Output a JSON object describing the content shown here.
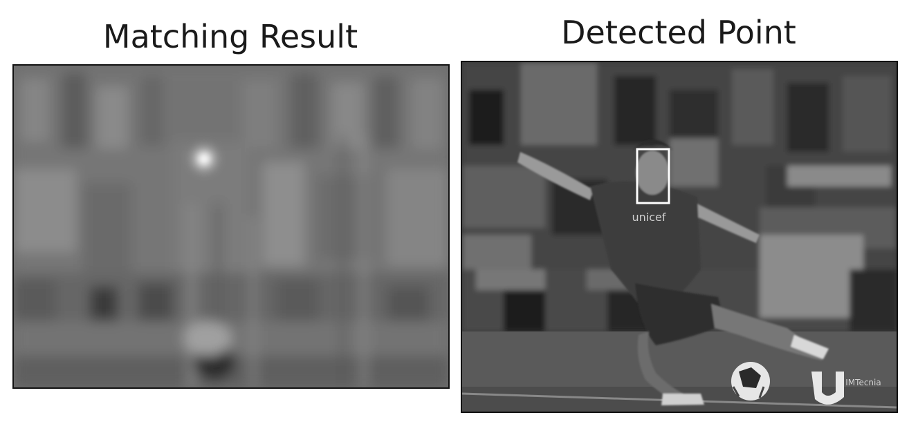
{
  "panels": {
    "left": {
      "title": "Matching Result"
    },
    "right": {
      "title": "Detected Point",
      "jersey_text": "unicef",
      "watermark_text": "IMTecnia"
    }
  }
}
